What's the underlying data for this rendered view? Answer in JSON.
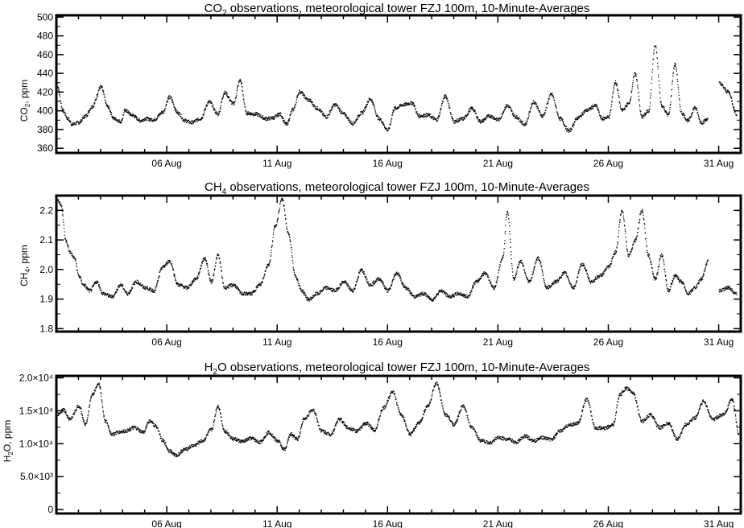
{
  "chart_data": [
    {
      "type": "scatter",
      "title_parts": [
        "CO",
        "2",
        " observations, meteorological tower FZJ 100m, 10-Minute-Averages"
      ],
      "ylabel_parts": [
        "CO",
        "2",
        ", ppm"
      ],
      "x_ticks": [
        "06 Aug",
        "11 Aug",
        "16 Aug",
        "21 Aug",
        "26 Aug",
        "31 Aug"
      ],
      "xlim": [
        "01 Aug 00:00",
        "31 Aug 23:50"
      ],
      "ylim": [
        355,
        502
      ],
      "y_ticks": [
        "360",
        "380",
        "400",
        "420",
        "440",
        "460",
        "480",
        "500"
      ],
      "y_tick_values": [
        360,
        380,
        400,
        420,
        440,
        460,
        480,
        500
      ],
      "series": [
        {
          "day": [
            1.0,
            1.3,
            1.5,
            1.7,
            2.0,
            2.3,
            2.6,
            3.0,
            3.3,
            3.6,
            3.9,
            4.1,
            4.4,
            4.8,
            5.0,
            5.4,
            5.8,
            6.1,
            6.5,
            6.8,
            7.1,
            7.5,
            7.9,
            8.3,
            8.6,
            9.0,
            9.3,
            9.6,
            10.0,
            10.5,
            10.8,
            11.1,
            11.4,
            11.7,
            12.0,
            12.4,
            12.8,
            13.2,
            13.6,
            14.0,
            14.4,
            14.8,
            15.2,
            15.6,
            16.0,
            16.3,
            16.7,
            17.1,
            17.4,
            17.8,
            18.2,
            18.6,
            19.0,
            19.4,
            19.8,
            20.2,
            20.6,
            21.0,
            21.4,
            21.8,
            22.2,
            22.6,
            23.0,
            23.4,
            23.8,
            24.2,
            24.6,
            25.0,
            25.4,
            25.7,
            26.0,
            26.3,
            26.6,
            26.9,
            27.2,
            27.5,
            27.8,
            28.1,
            28.4,
            28.7,
            29.0,
            29.3,
            29.6,
            29.9,
            30.2,
            30.5,
            31.0,
            31.4,
            31.8
          ],
          "ppm": [
            428,
            400,
            392,
            386,
            388,
            395,
            405,
            426,
            405,
            392,
            389,
            401,
            396,
            390,
            392,
            391,
            399,
            415,
            398,
            390,
            388,
            392,
            410,
            397,
            420,
            408,
            433,
            398,
            397,
            392,
            393,
            397,
            386,
            402,
            421,
            412,
            403,
            394,
            407,
            397,
            387,
            398,
            413,
            392,
            380,
            403,
            407,
            409,
            395,
            396,
            391,
            416,
            389,
            392,
            403,
            389,
            395,
            391,
            406,
            394,
            386,
            410,
            395,
            418,
            392,
            379,
            393,
            401,
            406,
            392,
            394,
            431,
            401,
            408,
            440,
            394,
            400,
            470,
            406,
            396,
            450,
            398,
            390,
            404,
            388,
            392,
            430,
            421,
            397
          ]
        }
      ]
    },
    {
      "type": "scatter",
      "title_parts": [
        "CH",
        "4",
        " observations, meteorological tower FZJ 100m, 10-Minute-Averages"
      ],
      "ylabel_parts": [
        "CH",
        "4",
        ", ppm"
      ],
      "x_ticks": [
        "06 Aug",
        "11 Aug",
        "16 Aug",
        "21 Aug",
        "26 Aug",
        "31 Aug"
      ],
      "xlim": [
        "01 Aug 00:00",
        "31 Aug 23:50"
      ],
      "ylim": [
        1.79,
        2.25
      ],
      "y_ticks": [
        "1.8",
        "1.9",
        "2.0",
        "2.1",
        "2.2"
      ],
      "y_tick_values": [
        1.8,
        1.9,
        2.0,
        2.1,
        2.2
      ],
      "series": [
        {
          "day": [
            1.0,
            1.2,
            1.4,
            1.6,
            1.8,
            2.0,
            2.2,
            2.5,
            2.8,
            3.1,
            3.5,
            3.9,
            4.2,
            4.6,
            5.0,
            5.4,
            5.8,
            6.1,
            6.5,
            6.9,
            7.3,
            7.7,
            8.0,
            8.3,
            8.6,
            9.0,
            9.4,
            9.8,
            10.2,
            10.6,
            10.9,
            11.2,
            11.5,
            11.8,
            12.1,
            12.4,
            12.8,
            13.2,
            13.6,
            14.0,
            14.4,
            14.8,
            15.2,
            15.6,
            16.0,
            16.4,
            16.8,
            17.2,
            17.6,
            18.0,
            18.4,
            18.8,
            19.2,
            19.6,
            20.0,
            20.4,
            20.8,
            21.2,
            21.4,
            21.7,
            22.0,
            22.4,
            22.8,
            23.2,
            23.6,
            24.0,
            24.4,
            24.8,
            25.2,
            25.6,
            26.0,
            26.3,
            26.6,
            26.9,
            27.2,
            27.5,
            27.8,
            28.1,
            28.4,
            28.7,
            29.0,
            29.3,
            29.6,
            29.9,
            30.2,
            30.5,
            31.0,
            31.4,
            31.8
          ],
          "ppm": [
            2.24,
            2.22,
            2.1,
            2.06,
            2.04,
            1.98,
            1.95,
            1.93,
            1.96,
            1.92,
            1.91,
            1.95,
            1.92,
            1.96,
            1.94,
            1.93,
            2.01,
            2.03,
            1.95,
            1.94,
            1.97,
            2.04,
            1.96,
            2.05,
            1.94,
            1.95,
            1.92,
            1.92,
            1.95,
            2.02,
            2.15,
            2.24,
            2.12,
            1.98,
            1.93,
            1.9,
            1.92,
            1.94,
            1.93,
            1.96,
            1.93,
            2.0,
            1.95,
            1.97,
            1.93,
            1.99,
            1.94,
            1.91,
            1.92,
            1.9,
            1.93,
            1.91,
            1.92,
            1.91,
            1.96,
            1.99,
            1.94,
            2.04,
            2.2,
            1.97,
            2.03,
            1.96,
            2.04,
            1.94,
            1.96,
            1.99,
            1.94,
            2.02,
            1.96,
            1.98,
            2.01,
            2.06,
            2.2,
            2.05,
            2.1,
            2.2,
            2.05,
            1.97,
            2.05,
            1.93,
            1.98,
            1.96,
            1.92,
            1.94,
            1.97,
            2.03,
            1.93,
            1.94,
            1.92
          ]
        }
      ]
    },
    {
      "type": "scatter",
      "title_parts": [
        "H",
        "2",
        "O observations, meteorological tower FZJ 100m, 10-Minute-Averages"
      ],
      "ylabel_parts": [
        "H",
        "2",
        "O, ppm"
      ],
      "x_ticks": [
        "06 Aug",
        "11 Aug",
        "16 Aug",
        "21 Aug",
        "26 Aug",
        "31 Aug"
      ],
      "xlim": [
        "01 Aug 00:00",
        "31 Aug 23:50"
      ],
      "ylim": [
        -600,
        20300
      ],
      "y_ticks": [
        "0",
        "5.0×10³",
        "1.0×10⁴",
        "1.5×10⁴",
        "2.0×10⁴"
      ],
      "y_tick_values": [
        0,
        5000,
        10000,
        15000,
        20000
      ],
      "series": [
        {
          "day": [
            1.0,
            1.3,
            1.6,
            2.0,
            2.3,
            2.6,
            2.9,
            3.2,
            3.5,
            3.8,
            4.1,
            4.5,
            4.9,
            5.2,
            5.5,
            5.8,
            6.1,
            6.4,
            6.8,
            7.2,
            7.6,
            8.0,
            8.3,
            8.6,
            9.0,
            9.4,
            9.8,
            10.2,
            10.6,
            11.0,
            11.3,
            11.6,
            11.9,
            12.2,
            12.6,
            13.0,
            13.4,
            13.8,
            14.2,
            14.6,
            15.0,
            15.4,
            15.8,
            16.2,
            16.6,
            17.0,
            17.4,
            17.8,
            18.2,
            18.6,
            19.0,
            19.4,
            19.8,
            20.2,
            20.6,
            21.0,
            21.4,
            21.8,
            22.2,
            22.6,
            23.0,
            23.4,
            23.8,
            24.2,
            24.6,
            25.0,
            25.4,
            25.8,
            26.2,
            26.5,
            26.8,
            27.1,
            27.5,
            27.9,
            28.3,
            28.7,
            29.1,
            29.5,
            29.9,
            30.3,
            30.7,
            31.2,
            31.6,
            31.9
          ],
          "ppm": [
            14500,
            15200,
            13800,
            15800,
            13000,
            17500,
            19200,
            13500,
            11500,
            11800,
            12000,
            12500,
            11800,
            13500,
            12700,
            10500,
            9000,
            8300,
            9200,
            9800,
            10500,
            12200,
            15800,
            12000,
            10800,
            10400,
            10900,
            10300,
            11800,
            10500,
            9200,
            11500,
            10800,
            13800,
            15200,
            12000,
            11500,
            13800,
            12500,
            12000,
            13200,
            12200,
            15500,
            18000,
            14500,
            11500,
            13200,
            15800,
            19200,
            14500,
            13000,
            15800,
            12500,
            10600,
            10200,
            11000,
            10800,
            10300,
            11200,
            10500,
            11000,
            10700,
            12000,
            12900,
            13200,
            16800,
            12500,
            12400,
            13000,
            17500,
            18500,
            17800,
            13500,
            14500,
            12500,
            13200,
            10800,
            13000,
            14000,
            16500,
            13800,
            14500,
            16800,
            11500
          ]
        }
      ]
    }
  ]
}
